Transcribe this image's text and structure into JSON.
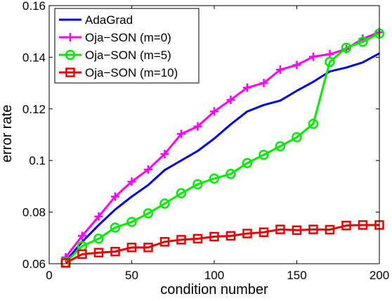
{
  "chart_data": {
    "type": "line",
    "title": "",
    "xlabel": "condition number",
    "ylabel": "error rate",
    "xlim": [
      0,
      200
    ],
    "ylim": [
      0.06,
      0.16
    ],
    "xticks": [
      0,
      50,
      100,
      150,
      200
    ],
    "yticks": [
      0.06,
      0.08,
      0.1,
      0.12,
      0.14,
      0.16
    ],
    "xtick_labels": [
      "0",
      "50",
      "100",
      "150",
      "200"
    ],
    "ytick_labels": [
      "0.06",
      "0.08",
      "0.1",
      "0.12",
      "0.14",
      "0.16"
    ],
    "grid": false,
    "legend_position": "top-left",
    "x": [
      10,
      20,
      30,
      40,
      50,
      60,
      70,
      80,
      90,
      100,
      110,
      120,
      130,
      140,
      150,
      160,
      170,
      180,
      190,
      200
    ],
    "series": [
      {
        "name": "AdaGrad",
        "color": "#0000ee",
        "marker": "none",
        "values": [
          0.061,
          0.0685,
          0.075,
          0.081,
          0.086,
          0.0905,
          0.0963,
          0.1,
          0.1037,
          0.1085,
          0.114,
          0.119,
          0.1215,
          0.1232,
          0.127,
          0.1305,
          0.1345,
          0.136,
          0.138,
          0.1415
        ]
      },
      {
        "name": "Oja−SON (m=0)",
        "color": "#ff00ff",
        "marker": "plus",
        "values": [
          0.0625,
          0.0708,
          0.0783,
          0.086,
          0.0918,
          0.0965,
          0.1025,
          0.1103,
          0.1132,
          0.119,
          0.1235,
          0.1282,
          0.13,
          0.1352,
          0.137,
          0.1402,
          0.1412,
          0.1432,
          0.1472,
          0.1497
        ]
      },
      {
        "name": "Oja−SON (m=5)",
        "color": "#00ee00",
        "marker": "circle",
        "values": [
          0.0605,
          0.0668,
          0.0697,
          0.074,
          0.0762,
          0.0795,
          0.0833,
          0.0873,
          0.0908,
          0.093,
          0.0948,
          0.099,
          0.1022,
          0.1055,
          0.109,
          0.1142,
          0.1382,
          0.1437,
          0.146,
          0.1492
        ]
      },
      {
        "name": "Oja−SON (m=10)",
        "color": "#ee0000",
        "marker": "square",
        "values": [
          0.0603,
          0.0637,
          0.0643,
          0.0647,
          0.0663,
          0.0663,
          0.0685,
          0.0693,
          0.0697,
          0.0705,
          0.0708,
          0.0717,
          0.0722,
          0.0733,
          0.073,
          0.0733,
          0.0732,
          0.0748,
          0.075,
          0.075
        ]
      }
    ]
  }
}
